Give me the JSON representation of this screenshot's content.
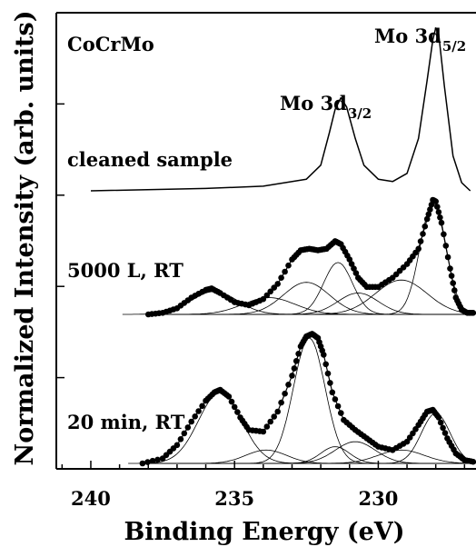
{
  "chart_data": {
    "type": "line",
    "xlabel": "Binding Energy (eV)",
    "ylabel": "Normalized Intensity (arb. units)",
    "xlim": [
      241.2,
      226.6
    ],
    "x_reversed": true,
    "xticks": [
      240,
      235,
      230
    ],
    "y_ticks_unlabeled": true,
    "grid": false,
    "sample_label": "CoCrMo",
    "peak_labels": [
      {
        "prefix": "Mo 3d",
        "subscript": "5/2",
        "x": 228.0
      },
      {
        "prefix": "Mo 3d",
        "subscript": "3/2",
        "x": 231.3
      }
    ],
    "series": [
      {
        "name": "cleaned sample",
        "style": "line",
        "baseline": 0,
        "x": [
          240.0,
          236.0,
          234.0,
          232.5,
          232.0,
          231.7,
          231.5,
          231.3,
          231.1,
          230.8,
          230.5,
          230.0,
          229.5,
          229.0,
          228.6,
          228.3,
          228.1,
          228.0,
          227.9,
          227.7,
          227.4,
          227.1,
          226.8
        ],
        "y": [
          0.0,
          0.02,
          0.04,
          0.1,
          0.22,
          0.5,
          0.7,
          0.8,
          0.72,
          0.45,
          0.22,
          0.1,
          0.08,
          0.15,
          0.45,
          0.95,
          1.3,
          1.4,
          1.35,
          0.9,
          0.3,
          0.07,
          0.0
        ]
      },
      {
        "name": "5000 L, RT",
        "style": "points",
        "baseline": 0,
        "x": [
          238.0,
          237.5,
          237.0,
          236.5,
          236.0,
          235.8,
          235.5,
          235.0,
          234.5,
          234.0,
          233.5,
          233.0,
          232.7,
          232.4,
          232.1,
          231.8,
          231.5,
          231.3,
          231.0,
          230.7,
          230.4,
          230.0,
          229.5,
          229.0,
          228.6,
          228.3,
          228.1,
          228.0,
          227.8,
          227.5,
          227.3,
          227.1,
          226.9,
          226.7
        ],
        "y": [
          0.0,
          0.02,
          0.08,
          0.22,
          0.32,
          0.34,
          0.28,
          0.16,
          0.12,
          0.2,
          0.4,
          0.72,
          0.84,
          0.86,
          0.84,
          0.86,
          0.96,
          0.92,
          0.72,
          0.48,
          0.36,
          0.36,
          0.48,
          0.66,
          0.86,
          1.25,
          1.5,
          1.48,
          1.2,
          0.6,
          0.22,
          0.06,
          0.02,
          0.02
        ]
      },
      {
        "name": "20 min, RT",
        "style": "points",
        "baseline": 0,
        "x": [
          238.2,
          237.5,
          237.0,
          236.5,
          236.0,
          235.7,
          235.5,
          235.2,
          234.8,
          234.5,
          234.0,
          233.5,
          233.0,
          232.7,
          232.5,
          232.3,
          232.1,
          231.9,
          231.6,
          231.2,
          230.8,
          230.4,
          230.0,
          229.5,
          229.0,
          228.6,
          228.3,
          228.1,
          227.9,
          227.6,
          227.3,
          227.0,
          226.7
        ],
        "y": [
          0.0,
          0.06,
          0.22,
          0.5,
          0.75,
          0.85,
          0.88,
          0.8,
          0.55,
          0.4,
          0.38,
          0.62,
          1.05,
          1.4,
          1.52,
          1.55,
          1.5,
          1.3,
          0.85,
          0.52,
          0.4,
          0.3,
          0.2,
          0.16,
          0.26,
          0.46,
          0.62,
          0.64,
          0.55,
          0.3,
          0.12,
          0.04,
          0.02
        ]
      }
    ],
    "fit_components": [
      {
        "spectrum": "5000 L, RT",
        "center": 235.7,
        "height": 0.3,
        "width": 0.8
      },
      {
        "spectrum": "5000 L, RT",
        "center": 233.8,
        "height": 0.22,
        "width": 0.9
      },
      {
        "spectrum": "5000 L, RT",
        "center": 232.5,
        "height": 0.42,
        "width": 0.8
      },
      {
        "spectrum": "5000 L, RT",
        "center": 231.4,
        "height": 0.68,
        "width": 0.5
      },
      {
        "spectrum": "5000 L, RT",
        "center": 230.7,
        "height": 0.28,
        "width": 0.7
      },
      {
        "spectrum": "5000 L, RT",
        "center": 229.2,
        "height": 0.45,
        "width": 0.9
      },
      {
        "spectrum": "5000 L, RT",
        "center": 228.1,
        "height": 1.45,
        "width": 0.45
      },
      {
        "spectrum": "20 min, RT",
        "center": 235.5,
        "height": 0.85,
        "width": 0.75
      },
      {
        "spectrum": "20 min, RT",
        "center": 233.9,
        "height": 0.16,
        "width": 0.7
      },
      {
        "spectrum": "20 min, RT",
        "center": 232.4,
        "height": 1.5,
        "width": 0.55
      },
      {
        "spectrum": "20 min, RT",
        "center": 231.5,
        "height": 0.2,
        "width": 0.5
      },
      {
        "spectrum": "20 min, RT",
        "center": 230.8,
        "height": 0.26,
        "width": 0.7
      },
      {
        "spectrum": "20 min, RT",
        "center": 229.2,
        "height": 0.16,
        "width": 0.8
      },
      {
        "spectrum": "20 min, RT",
        "center": 228.0,
        "height": 0.6,
        "width": 0.5
      }
    ]
  }
}
